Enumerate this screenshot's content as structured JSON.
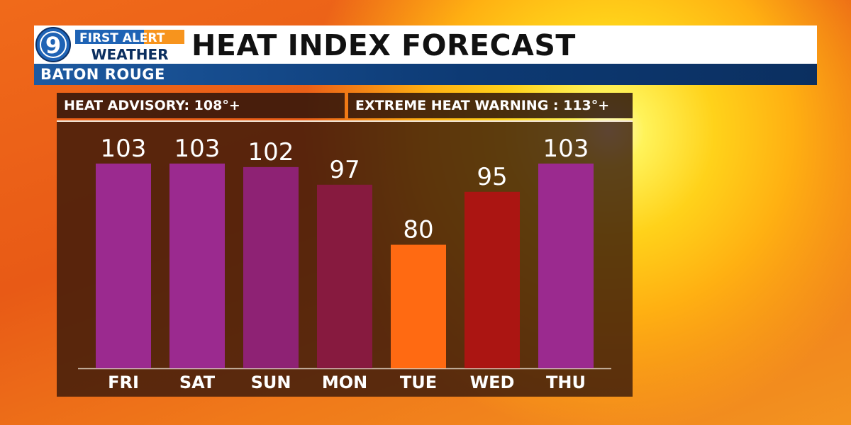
{
  "header": {
    "logo_number": "9",
    "logo_line1": "FIRST ALERT",
    "logo_line2": "WEATHER",
    "title": "HEAT INDEX FORECAST"
  },
  "subheader": {
    "location": "BATON ROUGE"
  },
  "thresholds": {
    "advisory": "HEAT ADVISORY: 108°+",
    "warning": "EXTREME HEAT WARNING : 113°+"
  },
  "colors": {
    "header_blue": "#1d5aa1",
    "logo_blue": "#1e63b5",
    "logo_orange": "#f7941d"
  },
  "chart_data": {
    "type": "bar",
    "title": "HEAT INDEX FORECAST",
    "categories": [
      "FRI",
      "SAT",
      "SUN",
      "MON",
      "TUE",
      "WED",
      "THU"
    ],
    "values": [
      103,
      103,
      102,
      97,
      80,
      95,
      103
    ],
    "bar_colors": [
      "#9b2a8f",
      "#9b2a8f",
      "#8e2274",
      "#871a3f",
      "#ff6a12",
      "#ab1512",
      "#9b2a8f"
    ],
    "value_labels": [
      "103",
      "103",
      "102",
      "97",
      "80",
      "95",
      "103"
    ],
    "xlabel": "",
    "ylabel": "",
    "ylim": [
      45,
      110
    ],
    "grid": false,
    "legend": "none"
  }
}
